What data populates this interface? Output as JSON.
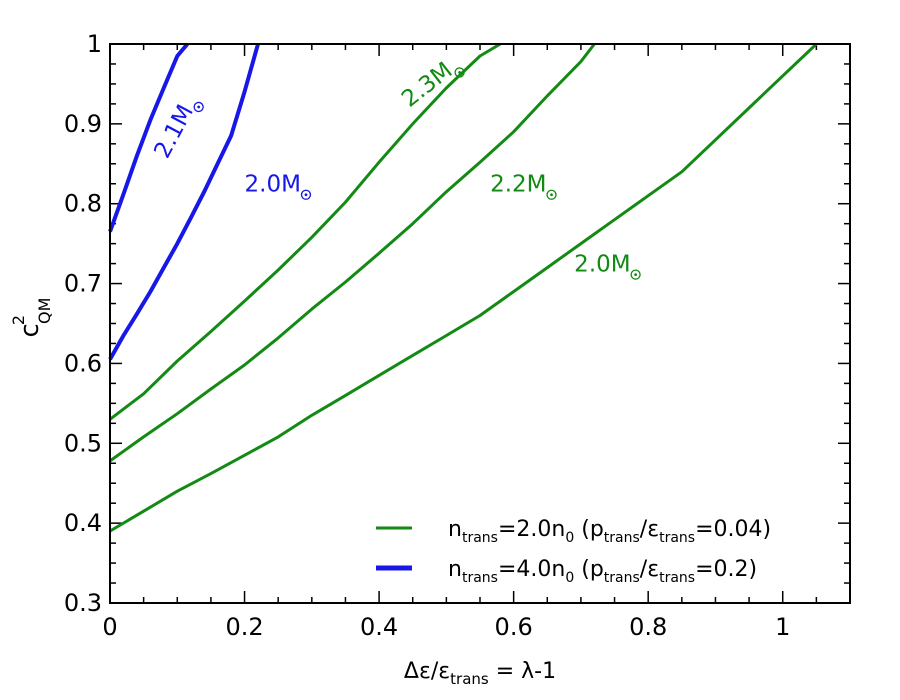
{
  "chart_data": {
    "type": "line",
    "xlabel": {
      "main": "Δε/ε",
      "sub": "trans",
      "suffix": " = λ-1"
    },
    "ylabel": {
      "main": "c",
      "sup": "2",
      "sub": "QM"
    },
    "xlim": [
      0,
      1.1
    ],
    "ylim": [
      0.3,
      1.0
    ],
    "xticks": [
      0,
      0.2,
      0.4,
      0.6,
      0.8,
      1
    ],
    "xtick_labels": [
      "0",
      "0.2",
      "0.4",
      "0.6",
      "0.8",
      "1"
    ],
    "yticks": [
      0.3,
      0.4,
      0.5,
      0.6,
      0.7,
      0.8,
      0.9,
      1.0
    ],
    "ytick_labels": [
      "0.3",
      "0.4",
      "0.5",
      "0.6",
      "0.7",
      "0.8",
      "0.9",
      "1"
    ],
    "grid": false,
    "legend_position": "bottom-right",
    "colors": {
      "green": "#138a13",
      "blue": "#1717e8"
    },
    "legend": [
      {
        "color": "green",
        "parts": [
          "n",
          "trans",
          "=2.0n",
          "0",
          " (p",
          "trans",
          "/ε",
          "trans",
          "=0.04)"
        ]
      },
      {
        "color": "blue",
        "parts": [
          "n",
          "trans",
          "=4.0n",
          "0",
          " (p",
          "trans",
          "/ε",
          "trans",
          "=0.2)"
        ]
      }
    ],
    "series": [
      {
        "color": "green",
        "label": "2.0M",
        "label_at": [
          0.69,
          0.715
        ],
        "label_rotate": 0,
        "x": [
          0,
          0.05,
          0.1,
          0.15,
          0.2,
          0.25,
          0.3,
          0.35,
          0.4,
          0.45,
          0.5,
          0.55,
          0.6,
          0.65,
          0.7,
          0.75,
          0.8,
          0.85,
          0.9,
          0.95,
          1.0,
          1.05
        ],
        "y": [
          0.39,
          0.415,
          0.44,
          0.462,
          0.485,
          0.508,
          0.535,
          0.56,
          0.585,
          0.61,
          0.635,
          0.66,
          0.69,
          0.72,
          0.75,
          0.78,
          0.81,
          0.84,
          0.88,
          0.92,
          0.96,
          1.0
        ]
      },
      {
        "color": "green",
        "label": "2.2M",
        "label_at": [
          0.565,
          0.815
        ],
        "label_rotate": 0,
        "x": [
          0,
          0.05,
          0.1,
          0.15,
          0.2,
          0.25,
          0.3,
          0.35,
          0.4,
          0.45,
          0.5,
          0.55,
          0.6,
          0.65,
          0.7,
          0.72
        ],
        "y": [
          0.478,
          0.508,
          0.537,
          0.568,
          0.598,
          0.632,
          0.668,
          0.702,
          0.738,
          0.775,
          0.815,
          0.852,
          0.89,
          0.935,
          0.978,
          1.0
        ]
      },
      {
        "color": "green",
        "label": "2.3M",
        "label_at": [
          0.445,
          0.92
        ],
        "label_rotate": -38,
        "x": [
          0,
          0.05,
          0.1,
          0.15,
          0.2,
          0.25,
          0.3,
          0.35,
          0.4,
          0.45,
          0.5,
          0.55,
          0.58
        ],
        "y": [
          0.53,
          0.562,
          0.603,
          0.64,
          0.678,
          0.717,
          0.758,
          0.802,
          0.852,
          0.9,
          0.945,
          0.985,
          1.0
        ]
      },
      {
        "color": "blue",
        "label": "2.0M",
        "label_at": [
          0.2,
          0.815
        ],
        "label_rotate": 0,
        "x": [
          0,
          0.02,
          0.04,
          0.06,
          0.08,
          0.1,
          0.12,
          0.14,
          0.16,
          0.18,
          0.2,
          0.22
        ],
        "y": [
          0.605,
          0.635,
          0.662,
          0.69,
          0.72,
          0.75,
          0.782,
          0.815,
          0.85,
          0.885,
          0.94,
          1.0
        ]
      },
      {
        "color": "blue",
        "label": "2.1M",
        "label_at": [
          0.085,
          0.855
        ],
        "label_rotate": -62,
        "x": [
          0,
          0.02,
          0.04,
          0.06,
          0.08,
          0.1,
          0.115
        ],
        "y": [
          0.765,
          0.812,
          0.86,
          0.905,
          0.945,
          0.985,
          1.0
        ]
      }
    ]
  }
}
